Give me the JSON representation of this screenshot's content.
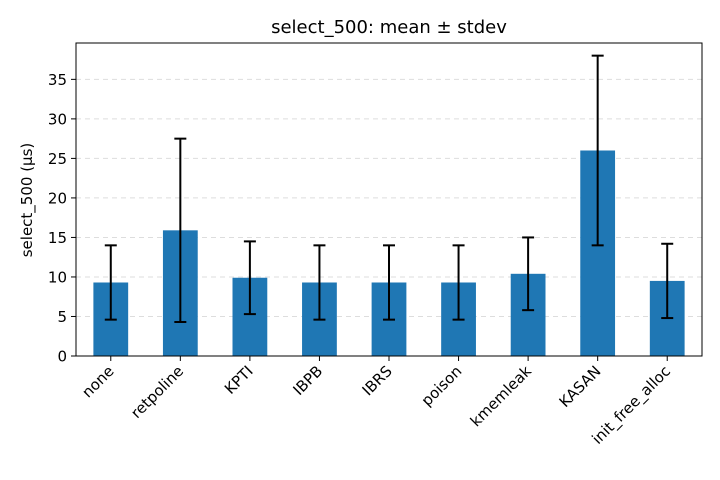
{
  "chart_data": {
    "type": "bar",
    "title": "select_500: mean ± stdev",
    "xlabel": "",
    "ylabel": "select_500 (µs)",
    "categories": [
      "none",
      "retpoline",
      "KPTI",
      "IBPB",
      "IBRS",
      "poison",
      "kmemleak",
      "KASAN",
      "init_free_alloc"
    ],
    "values": [
      9.3,
      15.9,
      9.9,
      9.3,
      9.3,
      9.3,
      10.4,
      26.0,
      9.5
    ],
    "errors": [
      4.7,
      11.6,
      4.6,
      4.7,
      4.7,
      4.7,
      4.6,
      12.0,
      4.7
    ],
    "ylim": [
      0,
      39.6
    ],
    "yticks": [
      0,
      5,
      10,
      15,
      20,
      25,
      30,
      35
    ],
    "grid": "y-dashed",
    "bar_color": "#1f77b4"
  }
}
